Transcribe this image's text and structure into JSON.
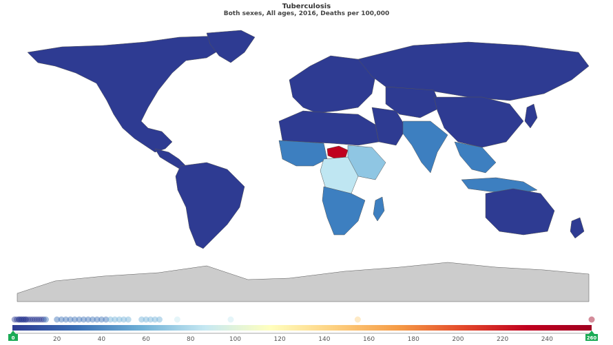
{
  "map": {
    "title": "Tuberculosis",
    "subtitle": "Both sexes, All ages, 2016, Deaths per 100,000"
  },
  "colors": {
    "ocean": "#ffffff",
    "border": "#555555",
    "no_data": "#cccccc",
    "low": "#2e3b92",
    "mid_low": "#3d7fc0",
    "mid": "#8fc6e3",
    "pale": "#bfe6f2",
    "high": "#c0001f",
    "handle": "#1aaa55"
  },
  "legend": {
    "min": 0,
    "max": 260,
    "ticks": [
      "0",
      "20",
      "40",
      "60",
      "80",
      "100",
      "120",
      "140",
      "160",
      "180",
      "200",
      "220",
      "240",
      "260"
    ],
    "handle_min_label": "0",
    "handle_max_label": "260",
    "gradient": [
      "#2e3b92",
      "#3a6fb5",
      "#6fb0d6",
      "#c6e8f2",
      "#ffffbf",
      "#fdd080",
      "#f59b46",
      "#e3492b",
      "#c0001f",
      "#a00020"
    ],
    "distribution_values": [
      1,
      2,
      3,
      3,
      4,
      4,
      5,
      5,
      6,
      6,
      7,
      8,
      9,
      10,
      11,
      12,
      13,
      14,
      15,
      20,
      22,
      24,
      26,
      28,
      30,
      32,
      34,
      36,
      38,
      40,
      42,
      44,
      46,
      48,
      50,
      52,
      58,
      60,
      62,
      64,
      66,
      74,
      98,
      155,
      260
    ]
  }
}
